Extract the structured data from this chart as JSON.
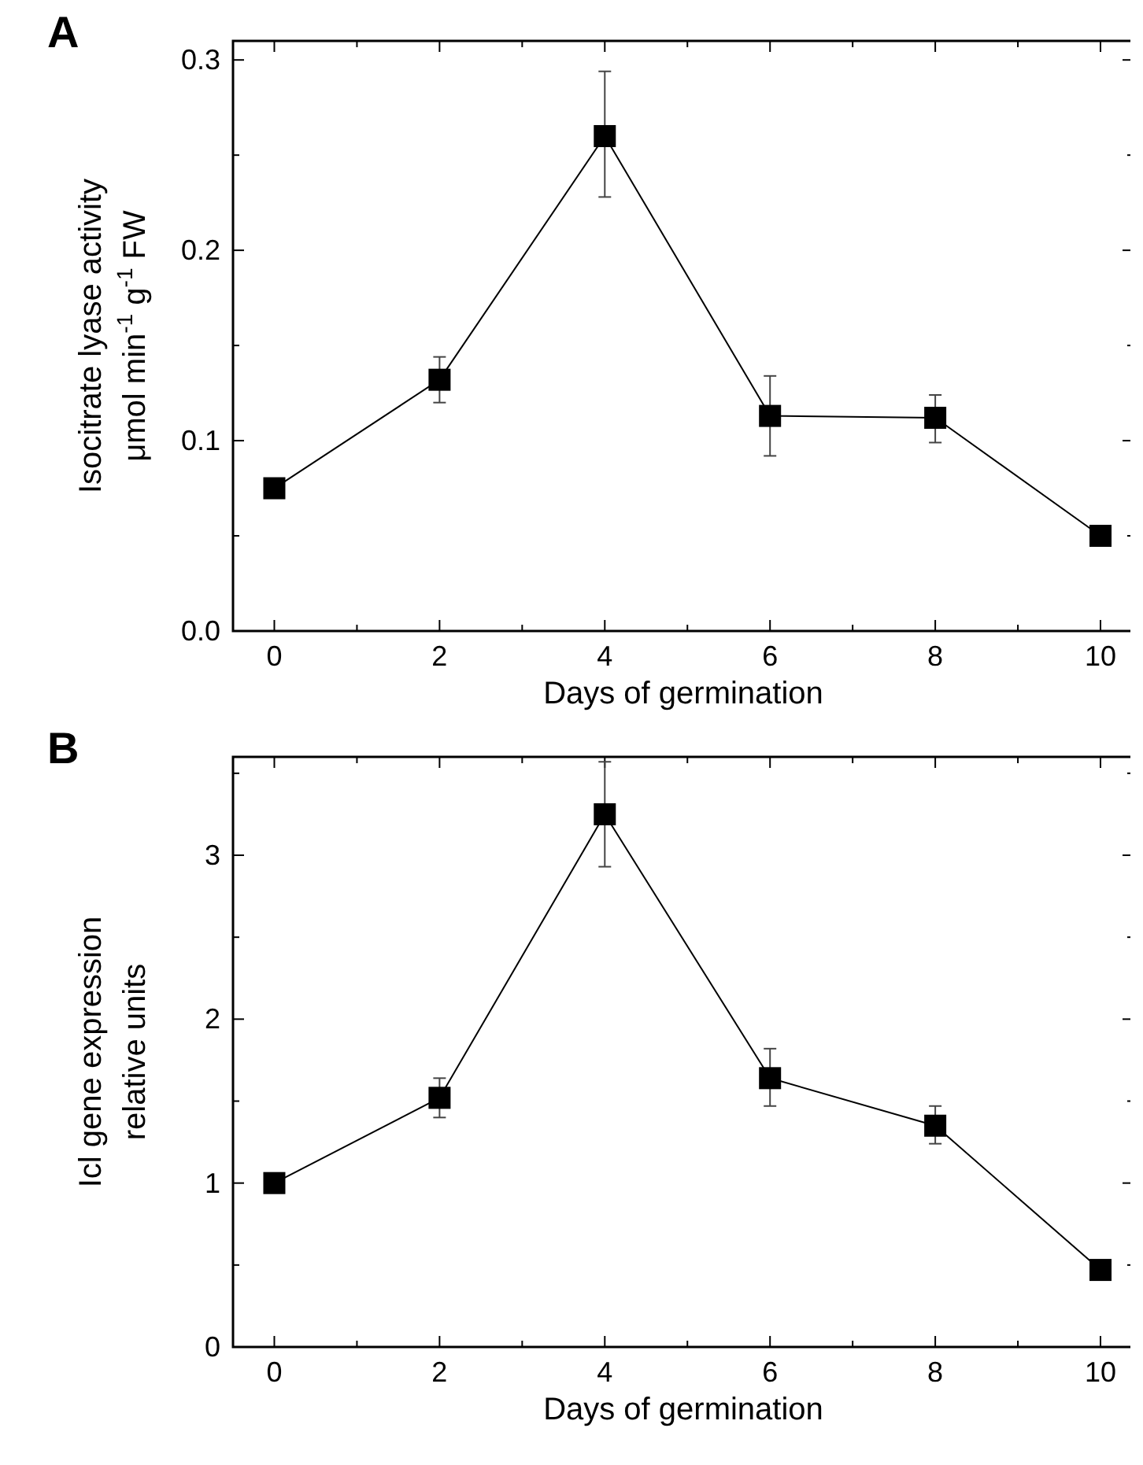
{
  "chart_data": [
    {
      "type": "line",
      "title": "A",
      "xlabel": "Days of germination",
      "ylabel": "Isocitrate lyase activity\nμmol min$^{-1}$ g$^{-1}$ FW",
      "x": [
        0,
        2,
        4,
        6,
        8,
        10
      ],
      "xlim": [
        -0.5,
        10.4
      ],
      "xticks": [
        0,
        {
          "value": 1,
          "label": null
        },
        2,
        {
          "value": 3,
          "label": null
        },
        4,
        {
          "value": 5,
          "label": null
        },
        6,
        {
          "value": 7,
          "label": null
        },
        8,
        {
          "value": 9,
          "label": null
        },
        10
      ],
      "ylim": [
        0,
        0.31
      ],
      "yticks": [
        {
          "value": 0,
          "label": "0.0"
        },
        {
          "value": 0.05,
          "label": null
        },
        0.1,
        {
          "value": 0.15,
          "label": null
        },
        0.2,
        {
          "value": 0.25,
          "label": null
        },
        0.3
      ],
      "marker": "square",
      "line_style": "solid",
      "grid": false,
      "series": [
        {
          "color": "#000000",
          "values": [
            0.075,
            0.132,
            0.26,
            0.113,
            0.112,
            0.05
          ],
          "errors": [
            null,
            [
              0.12,
              0.144
            ],
            [
              0.228,
              0.294
            ],
            [
              0.092,
              0.134
            ],
            [
              0.099,
              0.124
            ],
            null
          ]
        }
      ]
    },
    {
      "type": "line",
      "title": "B",
      "xlabel": "Days of germination",
      "ylabel": "Icl gene expression\nrelative units",
      "x": [
        0,
        2,
        4,
        6,
        8,
        10
      ],
      "xlim": [
        -0.5,
        10.4
      ],
      "xticks": [
        0,
        {
          "value": 1,
          "label": null
        },
        2,
        {
          "value": 3,
          "label": null
        },
        4,
        {
          "value": 5,
          "label": null
        },
        6,
        {
          "value": 7,
          "label": null
        },
        8,
        {
          "value": 9,
          "label": null
        },
        10
      ],
      "ylim": [
        0,
        3.6
      ],
      "yticks": [
        0,
        {
          "value": 0.5,
          "label": null
        },
        1,
        {
          "value": 1.5,
          "label": null
        },
        2,
        {
          "value": 2.5,
          "label": null
        },
        3,
        {
          "value": 3.5,
          "label": null
        }
      ],
      "marker": "square",
      "line_style": "solid",
      "grid": false,
      "series": [
        {
          "color": "#000000",
          "values": [
            1.0,
            1.52,
            3.25,
            1.64,
            1.35,
            0.47
          ],
          "errors": [
            null,
            [
              1.4,
              1.64
            ],
            [
              2.93,
              3.57
            ],
            [
              1.47,
              1.82
            ],
            [
              1.24,
              1.47
            ],
            null
          ]
        }
      ]
    }
  ]
}
